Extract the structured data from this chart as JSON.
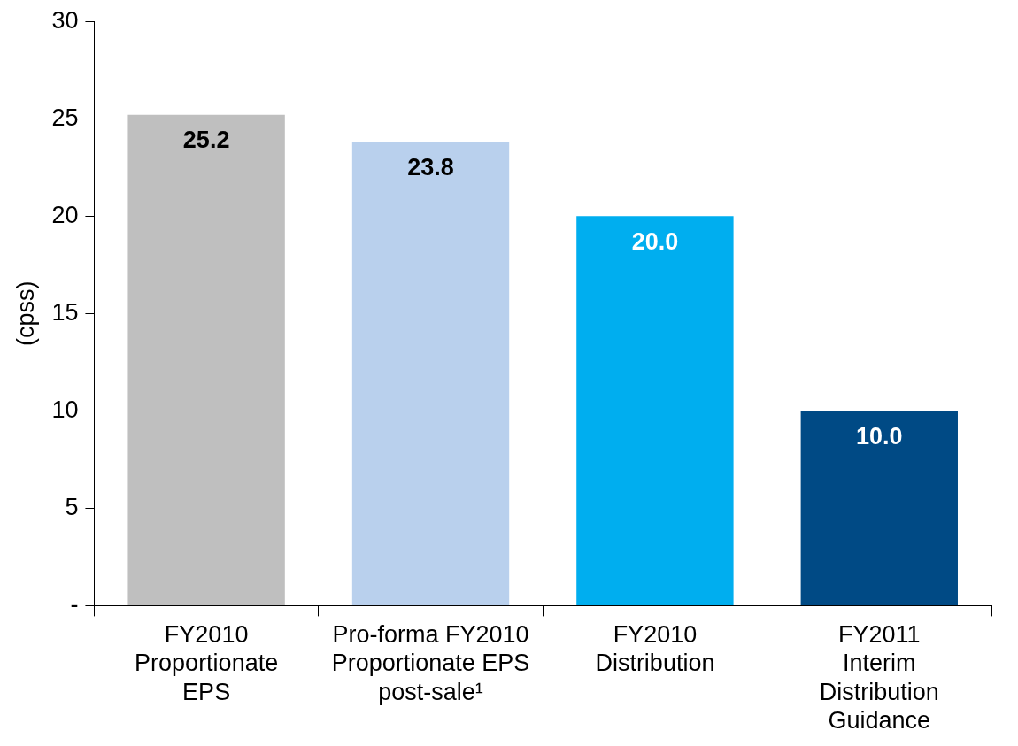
{
  "chart_data": {
    "type": "bar",
    "ylabel": "(cpss)",
    "categories": [
      "FY2010\nProportionate\nEPS",
      "Pro-forma FY2010\nProportionate EPS\npost-sale¹",
      "FY2010\nDistribution",
      "FY2011\nInterim\nDistribution\nGuidance"
    ],
    "values": [
      25.2,
      23.8,
      20.0,
      10.0
    ],
    "colors": [
      "#bfbfbf",
      "#b9d0ed",
      "#00aeef",
      "#004a85"
    ],
    "value_labels": [
      "25.2",
      "23.8",
      "20.0",
      "10.0"
    ],
    "ylim": [
      0,
      30
    ],
    "yticks": [
      {
        "value": 0,
        "label": "-"
      },
      5,
      10,
      15,
      20,
      25,
      30
    ],
    "grid": false,
    "legend": false
  }
}
